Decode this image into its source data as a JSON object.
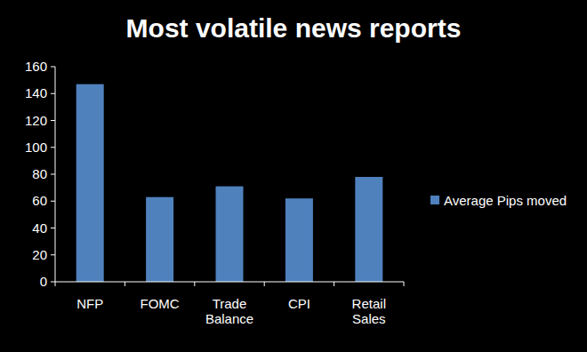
{
  "chart_data": {
    "type": "bar",
    "title": "Most volatile news reports",
    "categories": [
      "NFP",
      "FOMC",
      "Trade Balance",
      "CPI",
      "Retail Sales"
    ],
    "series": [
      {
        "name": "Average Pips moved",
        "color": "#4f81bd",
        "values": [
          147,
          63,
          71,
          62,
          78
        ]
      }
    ],
    "ylim": [
      0,
      160
    ],
    "yticks": [
      0,
      20,
      40,
      60,
      80,
      100,
      120,
      140,
      160
    ],
    "grid": false,
    "legend": "right"
  }
}
